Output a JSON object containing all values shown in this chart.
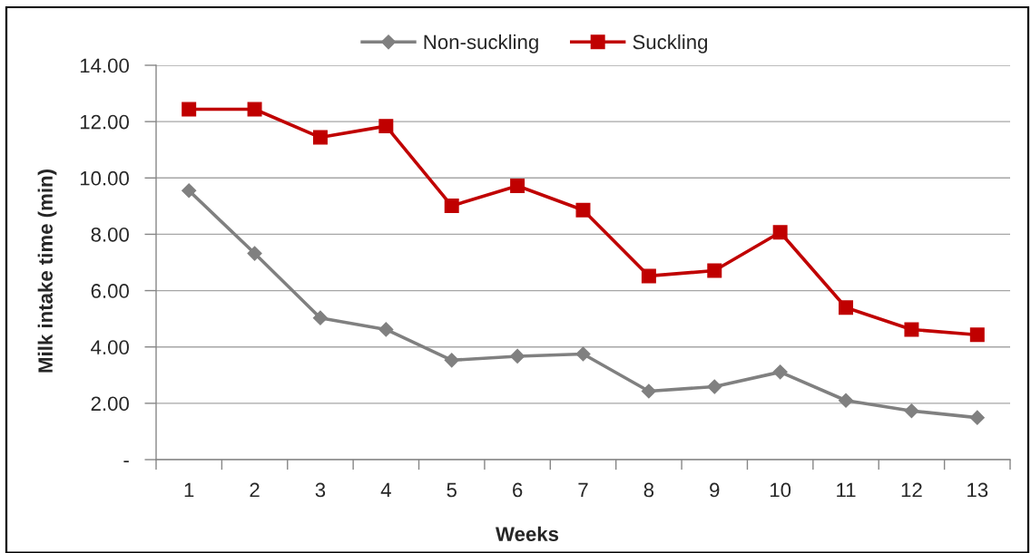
{
  "chart_data": {
    "type": "line",
    "xlabel": "Weeks",
    "ylabel": "Milk intake time (min)",
    "categories": [
      "1",
      "2",
      "3",
      "4",
      "5",
      "6",
      "7",
      "8",
      "9",
      "10",
      "11",
      "12",
      "13"
    ],
    "series": [
      {
        "name": "Non-suckling",
        "color": "#808080",
        "marker": "diamond",
        "values": [
          9.55,
          7.32,
          5.03,
          4.62,
          3.53,
          3.67,
          3.75,
          2.43,
          2.59,
          3.11,
          2.1,
          1.73,
          1.49
        ]
      },
      {
        "name": "Suckling",
        "color": "#c00000",
        "marker": "square",
        "values": [
          12.44,
          12.44,
          11.44,
          11.84,
          9.01,
          9.72,
          8.86,
          6.52,
          6.71,
          8.07,
          5.4,
          4.62,
          4.43
        ]
      }
    ],
    "ylim": [
      0,
      14
    ],
    "yticks": [
      {
        "value": 0,
        "label": "-"
      },
      {
        "value": 2,
        "label": "2.00"
      },
      {
        "value": 4,
        "label": "4.00"
      },
      {
        "value": 6,
        "label": "6.00"
      },
      {
        "value": 8,
        "label": "8.00"
      },
      {
        "value": 10,
        "label": "10.00"
      },
      {
        "value": 12,
        "label": "12.00"
      },
      {
        "value": 14,
        "label": "14.00"
      }
    ],
    "grid": "y",
    "legend": "top",
    "line_style": "solid"
  }
}
